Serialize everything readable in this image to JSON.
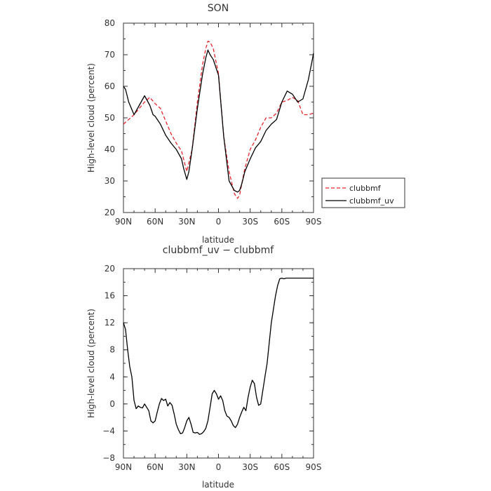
{
  "chart_data": [
    {
      "type": "line",
      "title": "SON",
      "xlabel": "latitude",
      "ylabel": "High-level cloud (percent)",
      "xlim": [
        90,
        -90
      ],
      "ylim": [
        20,
        80
      ],
      "x_ticks": [
        90,
        60,
        30,
        0,
        -30,
        -60,
        -90
      ],
      "x_tick_labels": [
        "90N",
        "60N",
        "30N",
        "0",
        "30S",
        "60S",
        "90S"
      ],
      "y_ticks": [
        20,
        30,
        40,
        50,
        60,
        70,
        80
      ],
      "y_tick_labels": [
        "20",
        "30",
        "40",
        "50",
        "60",
        "70",
        "80"
      ],
      "legend": {
        "placement": "right",
        "entries": [
          {
            "label": "clubbmf",
            "color": "#e8242a",
            "dash": true
          },
          {
            "label": "clubbmf_uv",
            "color": "#000000",
            "dash": false
          }
        ]
      },
      "series": [
        {
          "name": "clubbmf",
          "color": "#e8242a",
          "dashed": true,
          "x": [
            90,
            85,
            80,
            75,
            70,
            65,
            60,
            55,
            50,
            45,
            40,
            35,
            30,
            25,
            20,
            15,
            12,
            10,
            8,
            5,
            0,
            -5,
            -10,
            -15,
            -18,
            -20,
            -22,
            -25,
            -30,
            -35,
            -40,
            -45,
            -50,
            -55,
            -60,
            -65,
            -70,
            -75,
            -80,
            -85,
            -90
          ],
          "y": [
            48,
            49.5,
            51,
            53,
            55,
            56.5,
            54.5,
            53,
            49,
            45,
            42,
            39.5,
            33,
            40,
            55,
            67,
            72,
            74.3,
            74,
            72,
            64,
            44,
            33,
            26,
            24.5,
            25.5,
            29,
            34,
            40,
            43,
            47,
            50,
            50,
            51.5,
            55,
            55.5,
            56.5,
            55.5,
            51,
            51,
            51.5
          ]
        },
        {
          "name": "clubbmf_uv",
          "color": "#000000",
          "dashed": false,
          "x": [
            90,
            88,
            85,
            80,
            75,
            70,
            65,
            62,
            60,
            55,
            50,
            45,
            40,
            35,
            33,
            30,
            28,
            25,
            20,
            15,
            12,
            10,
            8,
            5,
            0,
            -5,
            -10,
            -15,
            -18,
            -20,
            -22,
            -25,
            -30,
            -35,
            -40,
            -45,
            -50,
            -55,
            -60,
            -65,
            -70,
            -75,
            -80,
            -85,
            -88,
            -90
          ],
          "y": [
            60,
            59,
            55,
            51,
            54,
            57,
            54,
            51,
            50.5,
            48,
            44.5,
            42,
            40,
            37,
            34,
            30.5,
            33,
            40,
            53,
            64,
            69,
            71.5,
            70,
            68.5,
            63.5,
            44,
            30,
            27,
            26.5,
            27,
            29,
            33,
            37,
            40.5,
            42.5,
            46,
            48,
            49.5,
            55,
            58.5,
            57.5,
            55,
            56,
            62,
            67,
            70.5
          ]
        }
      ]
    },
    {
      "type": "line",
      "title": "clubbmf_uv − clubbmf",
      "xlabel": "latitude",
      "ylabel": "High-level cloud (percent)",
      "xlim": [
        90,
        -90
      ],
      "ylim": [
        -8,
        20
      ],
      "x_ticks": [
        90,
        60,
        30,
        0,
        -30,
        -60,
        -90
      ],
      "x_tick_labels": [
        "90N",
        "60N",
        "30N",
        "0",
        "30S",
        "60S",
        "90S"
      ],
      "y_ticks": [
        -8,
        -4,
        0,
        4,
        8,
        12,
        16,
        20
      ],
      "y_tick_labels": [
        "−8",
        "−4",
        "0",
        "4",
        "8",
        "12",
        "16",
        "20"
      ],
      "series": [
        {
          "name": "clubbmf_uv − clubbmf",
          "color": "#000000",
          "dashed": false,
          "x": [
            90,
            88,
            86,
            84,
            82,
            80,
            78,
            76,
            74,
            72,
            70,
            68,
            66,
            64,
            62,
            60,
            58,
            56,
            54,
            52,
            50,
            48,
            46,
            44,
            42,
            40,
            38,
            36,
            34,
            32,
            30,
            28,
            26,
            24,
            22,
            20,
            18,
            16,
            14,
            12,
            10,
            8,
            6,
            4,
            2,
            0,
            -2,
            -4,
            -6,
            -8,
            -10,
            -12,
            -14,
            -16,
            -18,
            -20,
            -22,
            -24,
            -26,
            -28,
            -30,
            -32,
            -34,
            -36,
            -38,
            -40,
            -42,
            -44,
            -46,
            -48,
            -50,
            -52,
            -54,
            -56,
            -58,
            -60,
            -62,
            -64,
            -66,
            -68,
            -70,
            -72,
            -74,
            -76,
            -78,
            -80,
            -82,
            -84,
            -86,
            -88,
            -90
          ],
          "y": [
            12,
            11,
            8,
            5.5,
            4,
            0.5,
            -0.7,
            -0.3,
            -0.5,
            -0.6,
            0,
            -0.5,
            -1,
            -2.5,
            -2.8,
            -2.5,
            -1.2,
            0,
            0.8,
            0.5,
            0.7,
            -0.3,
            0.2,
            -0.2,
            -1.5,
            -3,
            -3.8,
            -4.4,
            -4.3,
            -3.5,
            -2.5,
            -2,
            -3,
            -4.2,
            -4.3,
            -4.2,
            -4.5,
            -4.4,
            -4.1,
            -3.6,
            -2.5,
            -0.5,
            1.5,
            2,
            1.5,
            0.7,
            1.2,
            0.5,
            -1,
            -1.8,
            -2,
            -2.5,
            -3.2,
            -3.5,
            -3,
            -2,
            -1.2,
            -0.5,
            -1,
            1,
            2.5,
            3.5,
            3,
            1,
            -0.2,
            0,
            2,
            4,
            6,
            9,
            12,
            14,
            16,
            17.5,
            18.5,
            18.6,
            18.5,
            18.6,
            18.6,
            18.6,
            18.6,
            18.6,
            18.6,
            18.6,
            18.6,
            18.6,
            18.6,
            18.6,
            18.6,
            18.6,
            18.6
          ]
        }
      ]
    }
  ]
}
